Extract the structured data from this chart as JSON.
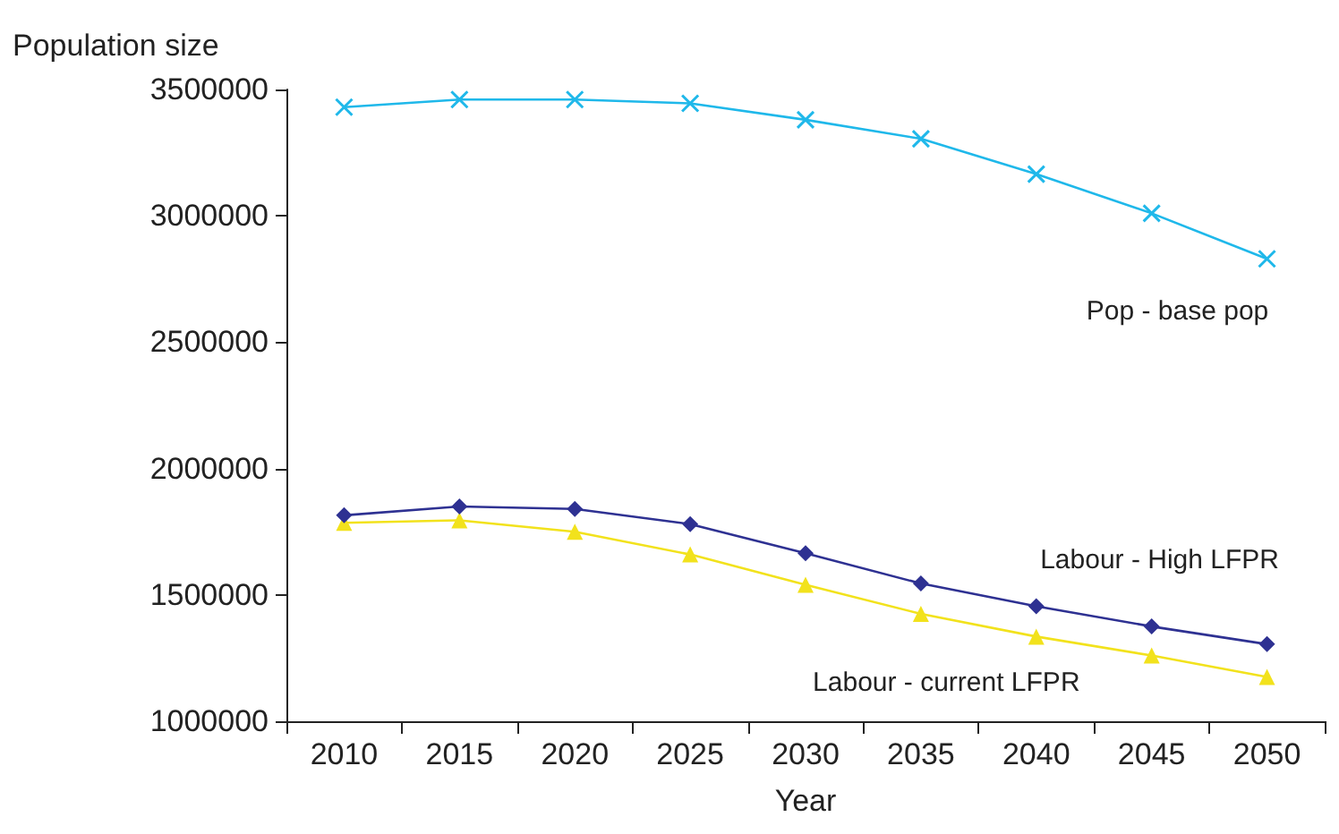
{
  "chart_data": {
    "type": "line",
    "ylabel": "Population size",
    "xlabel": "Year",
    "categories": [
      "2010",
      "2015",
      "2020",
      "2025",
      "2030",
      "2035",
      "2040",
      "2045",
      "2050"
    ],
    "series": [
      {
        "name": "Pop - base pop",
        "color": "#1fb8ea",
        "marker": "cross",
        "values": [
          3430000,
          3460000,
          3460000,
          3445000,
          3380000,
          3305000,
          3165000,
          3010000,
          2830000
        ]
      },
      {
        "name": "Labour - High LFPR",
        "color": "#2e3192",
        "marker": "diamond",
        "values": [
          1815000,
          1850000,
          1840000,
          1780000,
          1665000,
          1545000,
          1455000,
          1375000,
          1305000
        ]
      },
      {
        "name": "Labour - current LFPR",
        "color": "#f2e21c",
        "marker": "triangle",
        "values": [
          1785000,
          1795000,
          1750000,
          1660000,
          1540000,
          1425000,
          1335000,
          1260000,
          1175000
        ]
      }
    ],
    "ylim": [
      1000000,
      3500000
    ],
    "yticks": [
      1000000,
      1500000,
      2000000,
      2500000,
      3000000,
      3500000
    ],
    "grid": false,
    "legend": false
  }
}
